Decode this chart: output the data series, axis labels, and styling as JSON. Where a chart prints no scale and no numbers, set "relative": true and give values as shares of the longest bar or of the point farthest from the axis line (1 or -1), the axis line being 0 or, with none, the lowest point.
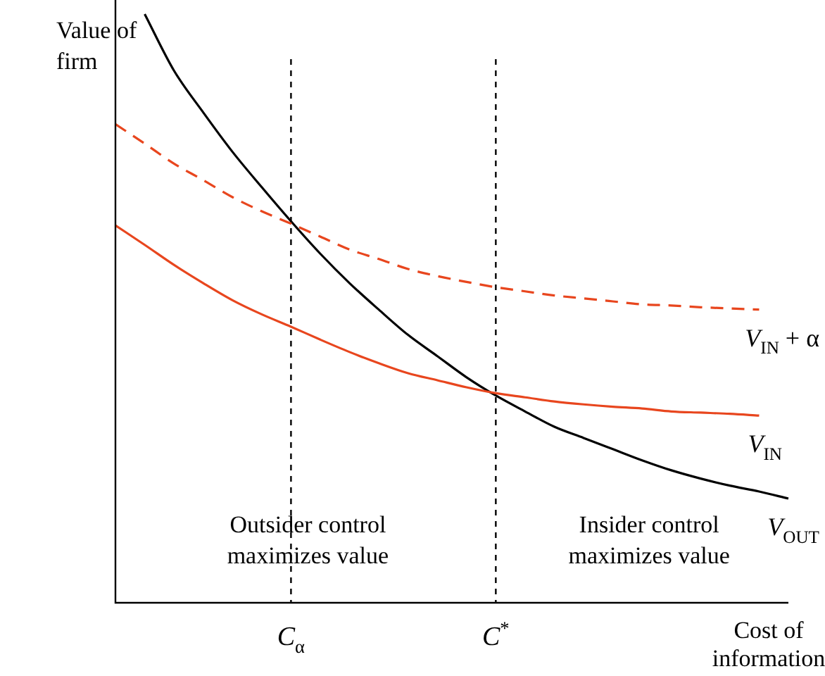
{
  "chart_data": {
    "type": "line",
    "relative": true,
    "ylabel": "Value of firm",
    "xlabel": "Cost of information",
    "tick_labels": "x",
    "grid": "x",
    "legend": false,
    "marker": "none",
    "categories": [
      null,
      null,
      null,
      null,
      null,
      null,
      "C$_{α}$",
      null,
      null,
      null,
      null,
      null,
      null,
      "C$^{*}$",
      null,
      null,
      null,
      null,
      null,
      null,
      null,
      null,
      null,
      null
    ],
    "annotations": [
      "Outsider control maximizes value",
      "Insider control maximizes value"
    ],
    "series": [
      {
        "name": "V$_{IN}$ + α",
        "color": "#e8461e",
        "line_style": "dashed",
        "values": [
          0.813,
          0.78,
          0.746,
          0.718,
          0.689,
          0.665,
          0.644,
          0.622,
          0.6,
          0.584,
          0.567,
          0.555,
          0.545,
          0.536,
          0.529,
          0.522,
          0.517,
          0.512,
          0.507,
          0.505,
          0.502,
          0.5,
          0.498,
          null
        ]
      },
      {
        "name": "V$_{IN}$",
        "color": "#e8461e",
        "line_style": "solid",
        "values": [
          0.641,
          0.608,
          0.574,
          0.543,
          0.514,
          0.49,
          0.469,
          0.447,
          0.426,
          0.407,
          0.39,
          0.378,
          0.366,
          0.356,
          0.349,
          0.342,
          0.337,
          0.333,
          0.33,
          0.325,
          0.323,
          0.321,
          0.318,
          null
        ]
      },
      {
        "name": "V$_{OUT}$",
        "color": "#000000",
        "line_style": "solid",
        "values": [
          null,
          1.0,
          0.904,
          0.833,
          0.766,
          0.706,
          0.648,
          0.593,
          0.543,
          0.498,
          0.455,
          0.419,
          0.383,
          0.352,
          0.325,
          0.299,
          0.28,
          0.261,
          0.242,
          0.225,
          0.211,
          0.199,
          0.189,
          0.177
        ]
      }
    ]
  }
}
